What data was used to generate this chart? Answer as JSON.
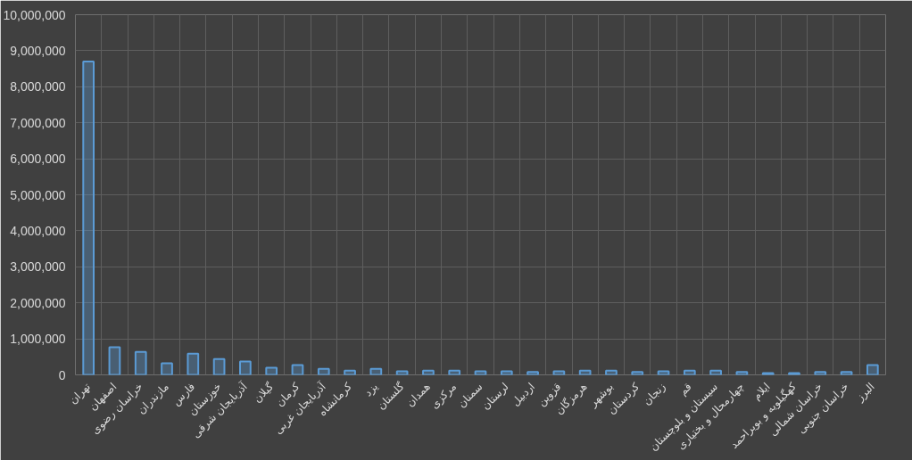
{
  "chart_data": {
    "type": "bar",
    "categories": [
      "تهران",
      "اصفهان",
      "خراسان رضوی",
      "مازندران",
      "فارس",
      "خوزستان",
      "آذربایجان شرقی",
      "گیلان",
      "کرمان",
      "آذربایجان غربی",
      "کرمانشاه",
      "یزد",
      "گلستان",
      "همدان",
      "مرکزی",
      "سمنان",
      "لرستان",
      "اردبیل",
      "قزوین",
      "هرمزگان",
      "بوشهر",
      "کردستان",
      "زنجان",
      "قم",
      "سیستان و بلوچستان",
      "چهارمحال و بختیاری",
      "ایلام",
      "کهگیلویه و بویراحمد",
      "خراسان شمالی",
      "خراسان جنوبی",
      "البرز"
    ],
    "values": [
      8700000,
      770000,
      640000,
      320000,
      590000,
      440000,
      370000,
      200000,
      270000,
      170000,
      120000,
      170000,
      100000,
      120000,
      120000,
      100000,
      100000,
      80000,
      100000,
      120000,
      120000,
      80000,
      100000,
      120000,
      120000,
      80000,
      50000,
      50000,
      80000,
      80000,
      270000
    ],
    "color": "#5b9bd5",
    "ylim": [
      0,
      10000000
    ],
    "yticks": [
      {
        "value": 0,
        "label": "0"
      },
      {
        "value": 1000000,
        "label": "1,000,000"
      },
      {
        "value": 2000000,
        "label": "2,000,000"
      },
      {
        "value": 3000000,
        "label": "3,000,000"
      },
      {
        "value": 4000000,
        "label": "4,000,000"
      },
      {
        "value": 5000000,
        "label": "5,000,000"
      },
      {
        "value": 6000000,
        "label": "6,000,000"
      },
      {
        "value": 7000000,
        "label": "7,000,000"
      },
      {
        "value": 8000000,
        "label": "8,000,000"
      },
      {
        "value": 9000000,
        "label": "9,000,000"
      },
      {
        "value": 10000000,
        "label": "10,000,000"
      }
    ],
    "grid": true
  }
}
